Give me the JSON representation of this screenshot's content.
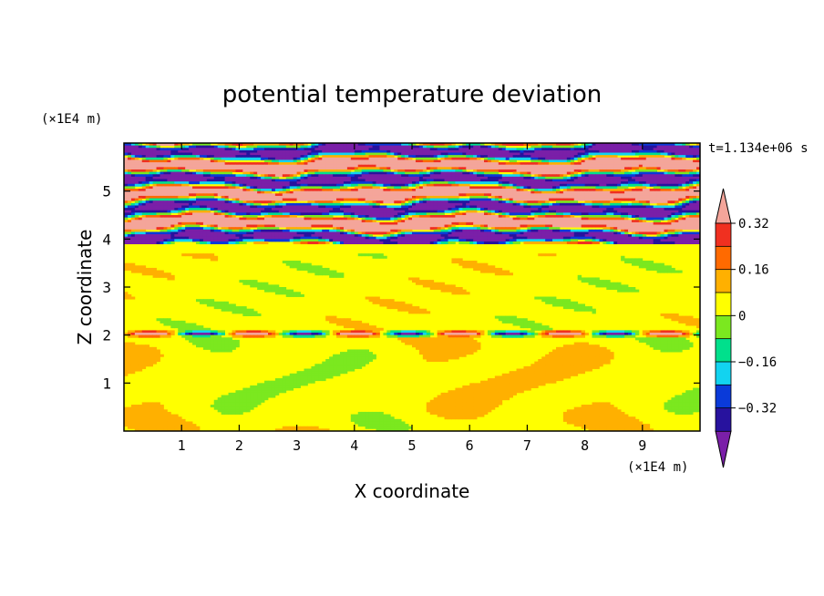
{
  "chart_data": {
    "type": "heatmap",
    "title": "potential temperature deviation",
    "xlabel": "X coordinate",
    "ylabel": "Z coordinate",
    "x_unit": "(×1E4 m)",
    "y_unit": "(×1E4 m)",
    "time_label": "t=1.134e+06 s",
    "xlim": [
      0,
      10
    ],
    "ylim": [
      0,
      6
    ],
    "x_ticks": [
      "1",
      "2",
      "3",
      "4",
      "5",
      "6",
      "7",
      "8",
      "9"
    ],
    "y_ticks": [
      "1",
      "2",
      "3",
      "4",
      "5"
    ],
    "colorbar": {
      "levels": [
        -0.4,
        -0.32,
        -0.24,
        -0.16,
        -0.08,
        0,
        0.08,
        0.16,
        0.24,
        0.32,
        0.4
      ],
      "labels": [
        "0.32",
        "0.16",
        "0",
        "−0.16",
        "−0.32"
      ],
      "colors": [
        "#7a1fa8",
        "#27129e",
        "#0a3ad9",
        "#12d3f0",
        "#00e08c",
        "#7be81f",
        "#ffff00",
        "#ffb000",
        "#ff6a00",
        "#f03020",
        "#f4a59a"
      ],
      "extend": "both"
    },
    "regions": [
      {
        "z_range": [
          0,
          2.0
        ],
        "description_value": "mostly 0 to 0.08 with near-zero patches"
      },
      {
        "z_range": [
          2.0,
          3.7
        ],
        "description_value": "mostly 0 to 0.08"
      },
      {
        "z_range": [
          3.9,
          6.0
        ],
        "description_value": "alternating layers from below -0.4 to above 0.4"
      }
    ]
  }
}
